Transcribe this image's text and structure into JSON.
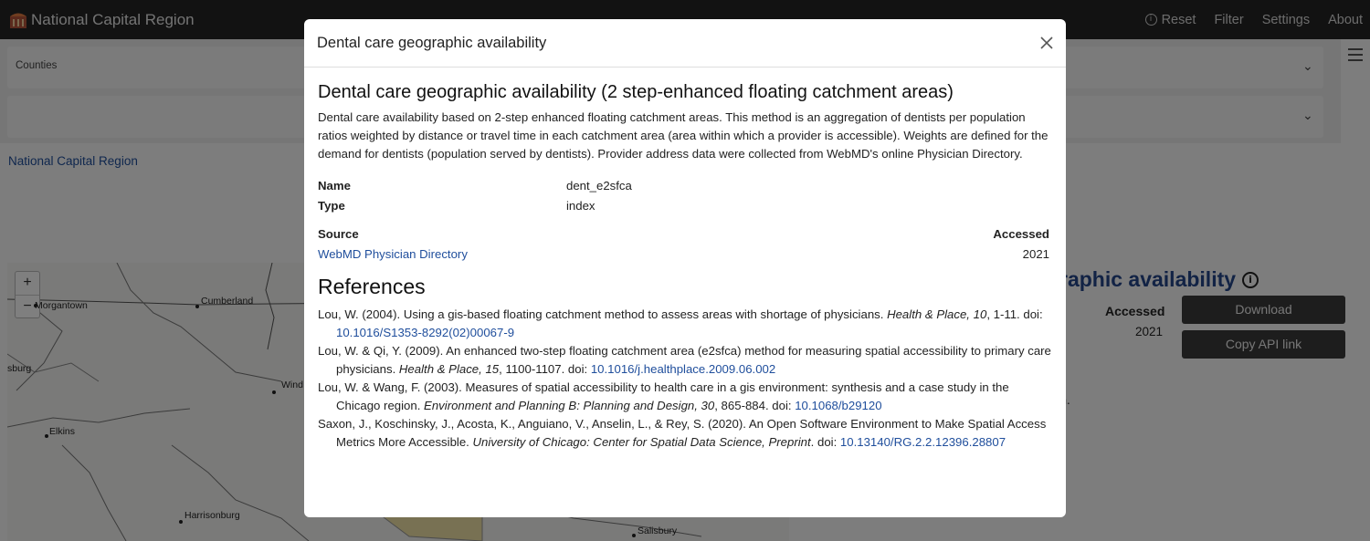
{
  "navbar": {
    "title": "National Capital Region",
    "links": {
      "reset": "Reset",
      "filter": "Filter",
      "settings": "Settings",
      "about": "About"
    }
  },
  "background": {
    "county_select_label": "Counties",
    "region_link": "National Capital Region",
    "map_cities": {
      "cumberland": "Cumberland",
      "morgantown": "Morgantown",
      "sburg": "sburg",
      "wind": "Wind",
      "elkins": "Elkins",
      "harrisonburg": "Harrisonburg",
      "salisbury": "Salisbury"
    },
    "zoom_in": "+",
    "zoom_out": "−",
    "variable_title_fragment": "raphic availability",
    "accessed_label": "Accessed",
    "accessed_value": "2021",
    "download_button": "Download",
    "copy_api_button": "Copy API link",
    "text_fragment": "ion."
  },
  "modal": {
    "title": "Dental care geographic availability",
    "heading": "Dental care geographic availability (2 step-enhanced floating catchment areas)",
    "description": "Dental care availability based on 2-step enhanced floating catchment areas. This method is an aggregation of dentists per population ratios weighted by distance or travel time in each catchment area (area within which a provider is accessible). Weights are defined for the demand for dentists (population served by dentists). Provider address data were collected from WebMD's online Physician Directory.",
    "meta": {
      "name_label": "Name",
      "name_value": "dent_e2sfca",
      "type_label": "Type",
      "type_value": "index"
    },
    "source": {
      "label": "Source",
      "link": "WebMD Physician Directory",
      "accessed_label": "Accessed",
      "accessed_value": "2021"
    },
    "references_heading": "References",
    "references": [
      {
        "text": "Lou, W. (2004). Using a gis-based floating catchment method to assess areas with shortage of physicians. ",
        "journal": "Health & Place, 10",
        "pages": ", 1-11. doi: ",
        "doi": "10.1016/S1353-8292(02)00067-9"
      },
      {
        "text": "Lou, W. & Qi, Y. (2009). An enhanced two-step floating catchment area (e2sfca) method for measuring spatial accessibility to primary care physicians. ",
        "journal": "Health & Place, 15",
        "pages": ", 1100-1107. doi: ",
        "doi": "10.1016/j.healthplace.2009.06.002"
      },
      {
        "text": "Lou, W. & Wang, F. (2003). Measures of spatial accessibility to health care in a gis environment: synthesis and a case study in the Chicago region. ",
        "journal": "Environment and Planning B: Planning and Design, 30",
        "pages": ", 865-884. doi: ",
        "doi": "10.1068/b29120"
      },
      {
        "text": "Saxon, J., Koschinsky, J., Acosta, K., Anguiano, V., Anselin, L., & Rey, S. (2020). An Open Software Environment to Make Spatial Access Metrics More Accessible. ",
        "journal": "University of Chicago: Center for Spatial Data Science, Preprint",
        "pages": ". doi: ",
        "doi": "10.13140/RG.2.2.12396.28807"
      }
    ]
  },
  "colors": {
    "navbar_bg": "#252525",
    "link": "#1f4e9c",
    "backdrop": "rgba(0,0,0,0.5)"
  }
}
